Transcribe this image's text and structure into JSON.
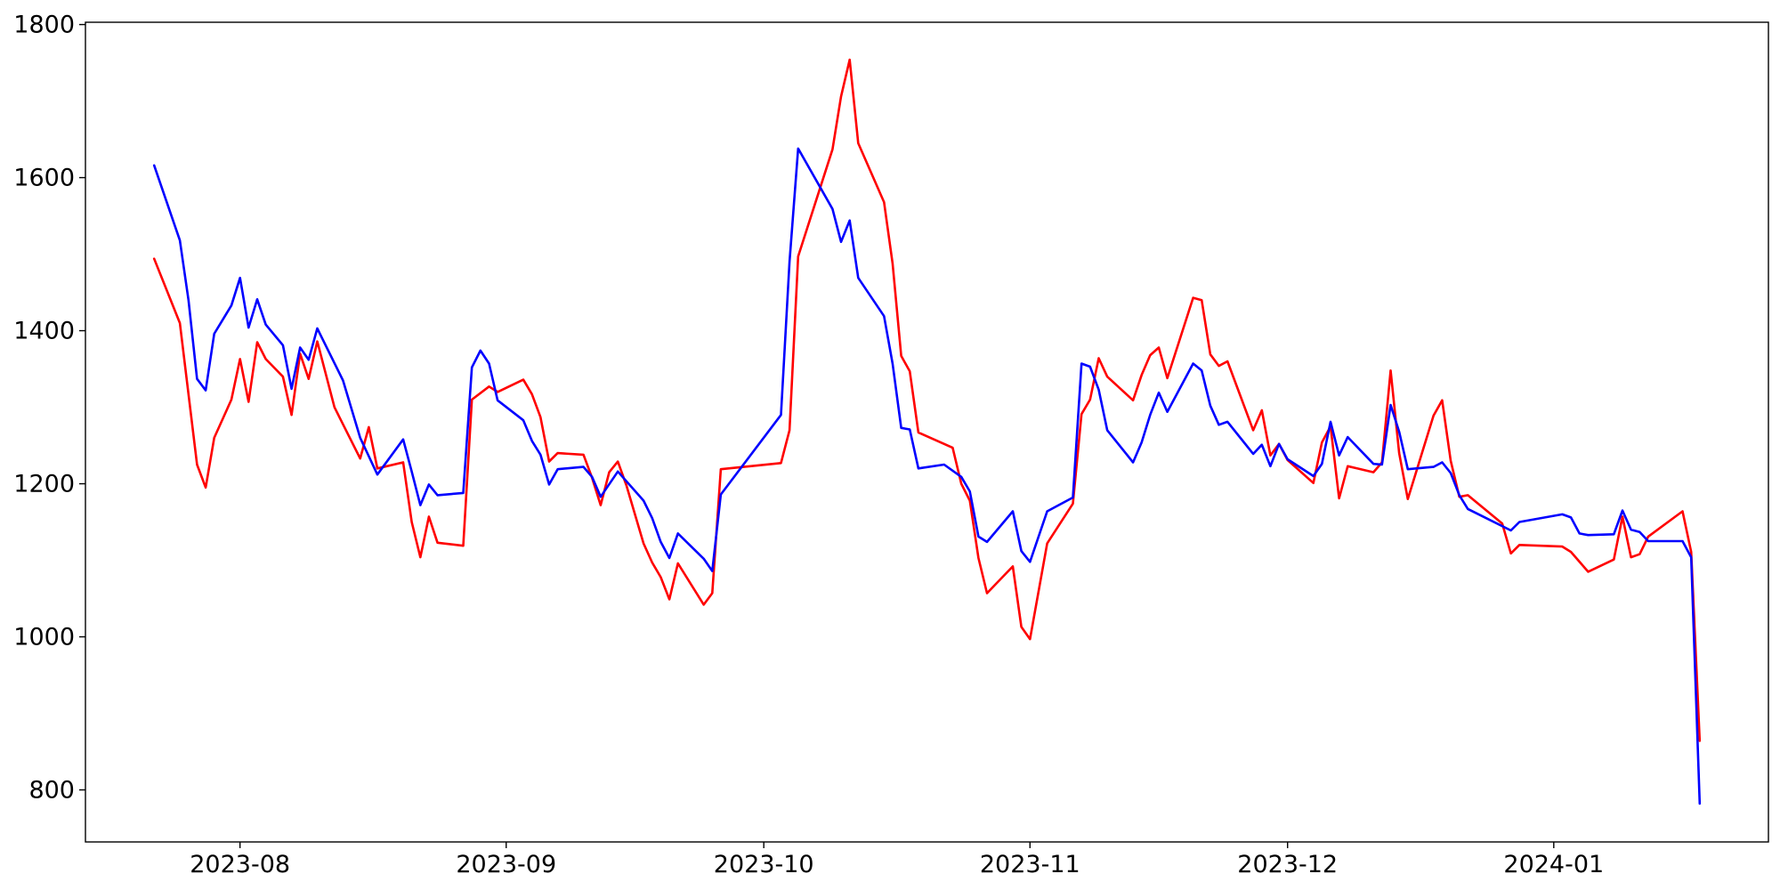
{
  "chart_data": {
    "type": "line",
    "title": "",
    "xlabel": "",
    "ylabel": "",
    "grid": false,
    "legend": "none",
    "xlim": [
      "2023-07-14",
      "2024-01-26"
    ],
    "ylim": [
      732,
      1803
    ],
    "x_ticks": [
      {
        "date": "2023-08-01",
        "label": "2023-08"
      },
      {
        "date": "2023-09-01",
        "label": "2023-09"
      },
      {
        "date": "2023-10-01",
        "label": "2023-10"
      },
      {
        "date": "2023-11-01",
        "label": "2023-11"
      },
      {
        "date": "2023-12-01",
        "label": "2023-12"
      },
      {
        "date": "2024-01-01",
        "label": "2024-01"
      }
    ],
    "y_ticks": [
      800,
      1000,
      1200,
      1400,
      1600,
      1800
    ],
    "series": [
      {
        "color": "#ff0000",
        "points": [
          [
            "2023-07-22",
            1494
          ],
          [
            "2023-07-25",
            1410
          ],
          [
            "2023-07-27",
            1225
          ],
          [
            "2023-07-28",
            1195
          ],
          [
            "2023-07-29",
            1260
          ],
          [
            "2023-07-31",
            1310
          ],
          [
            "2023-08-01",
            1363
          ],
          [
            "2023-08-02",
            1307
          ],
          [
            "2023-08-03",
            1385
          ],
          [
            "2023-08-04",
            1363
          ],
          [
            "2023-08-06",
            1340
          ],
          [
            "2023-08-07",
            1290
          ],
          [
            "2023-08-08",
            1370
          ],
          [
            "2023-08-09",
            1337
          ],
          [
            "2023-08-10",
            1386
          ],
          [
            "2023-08-12",
            1300
          ],
          [
            "2023-08-15",
            1233
          ],
          [
            "2023-08-16",
            1274
          ],
          [
            "2023-08-17",
            1220
          ],
          [
            "2023-08-20",
            1228
          ],
          [
            "2023-08-21",
            1150
          ],
          [
            "2023-08-22",
            1104
          ],
          [
            "2023-08-23",
            1157
          ],
          [
            "2023-08-24",
            1123
          ],
          [
            "2023-08-27",
            1119
          ],
          [
            "2023-08-28",
            1310
          ],
          [
            "2023-08-30",
            1327
          ],
          [
            "2023-08-31",
            1320
          ],
          [
            "2023-09-03",
            1336
          ],
          [
            "2023-09-04",
            1317
          ],
          [
            "2023-09-05",
            1287
          ],
          [
            "2023-09-06",
            1229
          ],
          [
            "2023-09-07",
            1240
          ],
          [
            "2023-09-10",
            1238
          ],
          [
            "2023-09-11",
            1208
          ],
          [
            "2023-09-12",
            1172
          ],
          [
            "2023-09-13",
            1215
          ],
          [
            "2023-09-14",
            1229
          ],
          [
            "2023-09-15",
            1198
          ],
          [
            "2023-09-17",
            1122
          ],
          [
            "2023-09-18",
            1097
          ],
          [
            "2023-09-19",
            1078
          ],
          [
            "2023-09-20",
            1049
          ],
          [
            "2023-09-21",
            1096
          ],
          [
            "2023-09-24",
            1042
          ],
          [
            "2023-09-25",
            1057
          ],
          [
            "2023-09-26",
            1219
          ],
          [
            "2023-10-03",
            1227
          ],
          [
            "2023-10-04",
            1270
          ],
          [
            "2023-10-05",
            1497
          ],
          [
            "2023-10-09",
            1637
          ],
          [
            "2023-10-10",
            1706
          ],
          [
            "2023-10-11",
            1754
          ],
          [
            "2023-10-12",
            1645
          ],
          [
            "2023-10-15",
            1568
          ],
          [
            "2023-10-16",
            1488
          ],
          [
            "2023-10-17",
            1367
          ],
          [
            "2023-10-18",
            1347
          ],
          [
            "2023-10-19",
            1267
          ],
          [
            "2023-10-23",
            1247
          ],
          [
            "2023-10-24",
            1200
          ],
          [
            "2023-10-25",
            1178
          ],
          [
            "2023-10-26",
            1103
          ],
          [
            "2023-10-27",
            1057
          ],
          [
            "2023-10-30",
            1092
          ],
          [
            "2023-10-31",
            1013
          ],
          [
            "2023-11-01",
            997
          ],
          [
            "2023-11-03",
            1122
          ],
          [
            "2023-11-06",
            1174
          ],
          [
            "2023-11-07",
            1291
          ],
          [
            "2023-11-08",
            1310
          ],
          [
            "2023-11-09",
            1364
          ],
          [
            "2023-11-10",
            1340
          ],
          [
            "2023-11-13",
            1309
          ],
          [
            "2023-11-14",
            1342
          ],
          [
            "2023-11-15",
            1368
          ],
          [
            "2023-11-16",
            1378
          ],
          [
            "2023-11-17",
            1338
          ],
          [
            "2023-11-20",
            1443
          ],
          [
            "2023-11-21",
            1440
          ],
          [
            "2023-11-22",
            1369
          ],
          [
            "2023-11-23",
            1354
          ],
          [
            "2023-11-24",
            1360
          ],
          [
            "2023-11-27",
            1270
          ],
          [
            "2023-11-28",
            1296
          ],
          [
            "2023-11-29",
            1237
          ],
          [
            "2023-11-30",
            1252
          ],
          [
            "2023-12-01",
            1231
          ],
          [
            "2023-12-04",
            1201
          ],
          [
            "2023-12-05",
            1254
          ],
          [
            "2023-12-06",
            1275
          ],
          [
            "2023-12-07",
            1181
          ],
          [
            "2023-12-08",
            1223
          ],
          [
            "2023-12-11",
            1215
          ],
          [
            "2023-12-12",
            1228
          ],
          [
            "2023-12-13",
            1348
          ],
          [
            "2023-12-14",
            1240
          ],
          [
            "2023-12-15",
            1180
          ],
          [
            "2023-12-18",
            1289
          ],
          [
            "2023-12-19",
            1309
          ],
          [
            "2023-12-20",
            1230
          ],
          [
            "2023-12-21",
            1183
          ],
          [
            "2023-12-22",
            1185
          ],
          [
            "2023-12-26",
            1148
          ],
          [
            "2023-12-27",
            1109
          ],
          [
            "2023-12-28",
            1120
          ],
          [
            "2024-01-02",
            1118
          ],
          [
            "2024-01-03",
            1111
          ],
          [
            "2024-01-05",
            1085
          ],
          [
            "2024-01-08",
            1101
          ],
          [
            "2024-01-09",
            1157
          ],
          [
            "2024-01-10",
            1104
          ],
          [
            "2024-01-11",
            1108
          ],
          [
            "2024-01-12",
            1131
          ],
          [
            "2024-01-16",
            1164
          ],
          [
            "2024-01-17",
            1111
          ],
          [
            "2024-01-18",
            864
          ]
        ]
      },
      {
        "color": "#0000ff",
        "points": [
          [
            "2023-07-22",
            1616
          ],
          [
            "2023-07-25",
            1518
          ],
          [
            "2023-07-26",
            1440
          ],
          [
            "2023-07-27",
            1337
          ],
          [
            "2023-07-28",
            1322
          ],
          [
            "2023-07-29",
            1396
          ],
          [
            "2023-07-31",
            1433
          ],
          [
            "2023-08-01",
            1469
          ],
          [
            "2023-08-02",
            1404
          ],
          [
            "2023-08-03",
            1441
          ],
          [
            "2023-08-04",
            1408
          ],
          [
            "2023-08-06",
            1381
          ],
          [
            "2023-08-07",
            1324
          ],
          [
            "2023-08-08",
            1378
          ],
          [
            "2023-08-09",
            1362
          ],
          [
            "2023-08-10",
            1403
          ],
          [
            "2023-08-13",
            1335
          ],
          [
            "2023-08-15",
            1260
          ],
          [
            "2023-08-17",
            1212
          ],
          [
            "2023-08-20",
            1258
          ],
          [
            "2023-08-21",
            1216
          ],
          [
            "2023-08-22",
            1172
          ],
          [
            "2023-08-23",
            1199
          ],
          [
            "2023-08-24",
            1185
          ],
          [
            "2023-08-27",
            1188
          ],
          [
            "2023-08-28",
            1352
          ],
          [
            "2023-08-29",
            1374
          ],
          [
            "2023-08-30",
            1357
          ],
          [
            "2023-08-31",
            1309
          ],
          [
            "2023-09-03",
            1283
          ],
          [
            "2023-09-04",
            1256
          ],
          [
            "2023-09-05",
            1238
          ],
          [
            "2023-09-06",
            1199
          ],
          [
            "2023-09-07",
            1219
          ],
          [
            "2023-09-10",
            1222
          ],
          [
            "2023-09-11",
            1209
          ],
          [
            "2023-09-12",
            1183
          ],
          [
            "2023-09-14",
            1216
          ],
          [
            "2023-09-17",
            1178
          ],
          [
            "2023-09-18",
            1155
          ],
          [
            "2023-09-19",
            1124
          ],
          [
            "2023-09-20",
            1103
          ],
          [
            "2023-09-21",
            1135
          ],
          [
            "2023-09-24",
            1102
          ],
          [
            "2023-09-25",
            1086
          ],
          [
            "2023-09-26",
            1186
          ],
          [
            "2023-10-03",
            1290
          ],
          [
            "2023-10-04",
            1490
          ],
          [
            "2023-10-05",
            1638
          ],
          [
            "2023-10-09",
            1559
          ],
          [
            "2023-10-10",
            1516
          ],
          [
            "2023-10-11",
            1544
          ],
          [
            "2023-10-12",
            1469
          ],
          [
            "2023-10-15",
            1419
          ],
          [
            "2023-10-16",
            1357
          ],
          [
            "2023-10-17",
            1273
          ],
          [
            "2023-10-18",
            1271
          ],
          [
            "2023-10-19",
            1220
          ],
          [
            "2023-10-22",
            1225
          ],
          [
            "2023-10-24",
            1209
          ],
          [
            "2023-10-25",
            1190
          ],
          [
            "2023-10-26",
            1131
          ],
          [
            "2023-10-27",
            1124
          ],
          [
            "2023-10-30",
            1164
          ],
          [
            "2023-10-31",
            1112
          ],
          [
            "2023-11-01",
            1098
          ],
          [
            "2023-11-03",
            1164
          ],
          [
            "2023-11-06",
            1182
          ],
          [
            "2023-11-07",
            1357
          ],
          [
            "2023-11-08",
            1353
          ],
          [
            "2023-11-09",
            1323
          ],
          [
            "2023-11-10",
            1270
          ],
          [
            "2023-11-13",
            1228
          ],
          [
            "2023-11-14",
            1254
          ],
          [
            "2023-11-15",
            1290
          ],
          [
            "2023-11-16",
            1319
          ],
          [
            "2023-11-17",
            1294
          ],
          [
            "2023-11-20",
            1357
          ],
          [
            "2023-11-21",
            1348
          ],
          [
            "2023-11-22",
            1302
          ],
          [
            "2023-11-23",
            1277
          ],
          [
            "2023-11-24",
            1281
          ],
          [
            "2023-11-27",
            1239
          ],
          [
            "2023-11-28",
            1251
          ],
          [
            "2023-11-29",
            1223
          ],
          [
            "2023-11-30",
            1252
          ],
          [
            "2023-12-01",
            1232
          ],
          [
            "2023-12-04",
            1210
          ],
          [
            "2023-12-05",
            1226
          ],
          [
            "2023-12-06",
            1281
          ],
          [
            "2023-12-07",
            1237
          ],
          [
            "2023-12-08",
            1261
          ],
          [
            "2023-12-11",
            1226
          ],
          [
            "2023-12-12",
            1225
          ],
          [
            "2023-12-13",
            1303
          ],
          [
            "2023-12-14",
            1268
          ],
          [
            "2023-12-15",
            1219
          ],
          [
            "2023-12-18",
            1222
          ],
          [
            "2023-12-19",
            1228
          ],
          [
            "2023-12-20",
            1214
          ],
          [
            "2023-12-21",
            1185
          ],
          [
            "2023-12-22",
            1167
          ],
          [
            "2023-12-27",
            1139
          ],
          [
            "2023-12-28",
            1150
          ],
          [
            "2024-01-02",
            1160
          ],
          [
            "2024-01-03",
            1156
          ],
          [
            "2024-01-04",
            1135
          ],
          [
            "2024-01-05",
            1133
          ],
          [
            "2024-01-08",
            1134
          ],
          [
            "2024-01-09",
            1165
          ],
          [
            "2024-01-10",
            1140
          ],
          [
            "2024-01-11",
            1137
          ],
          [
            "2024-01-12",
            1125
          ],
          [
            "2024-01-16",
            1125
          ],
          [
            "2024-01-17",
            1104
          ],
          [
            "2024-01-18",
            782
          ]
        ]
      }
    ]
  }
}
